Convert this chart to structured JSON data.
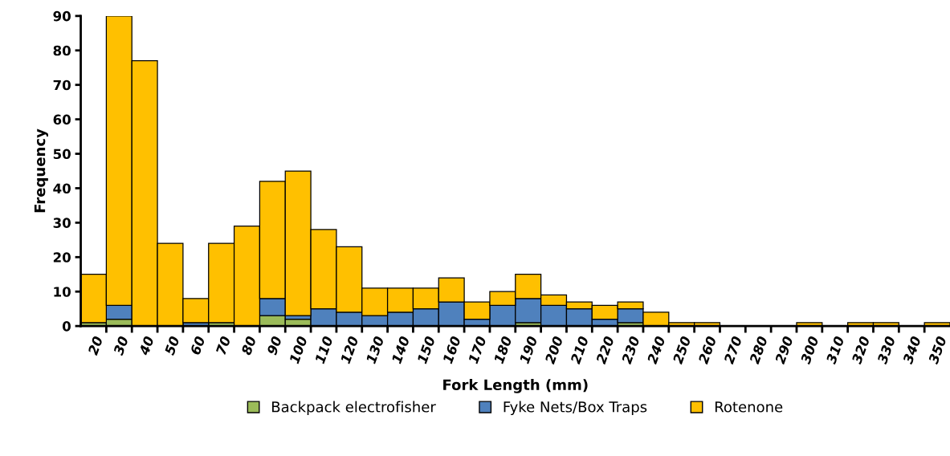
{
  "chart_data": {
    "type": "bar",
    "stacked": true,
    "xlabel": "Fork Length (mm)",
    "ylabel": "Frequency",
    "categories": [
      "20",
      "30",
      "40",
      "50",
      "60",
      "70",
      "80",
      "90",
      "100",
      "110",
      "120",
      "130",
      "140",
      "150",
      "160",
      "170",
      "180",
      "190",
      "200",
      "210",
      "220",
      "230",
      "240",
      "250",
      "260",
      "270",
      "280",
      "290",
      "300",
      "310",
      "320",
      "330",
      "340",
      "350"
    ],
    "series": [
      {
        "name": "Backpack electrofisher",
        "color": "#9bbb59",
        "values": [
          1,
          2,
          0,
          0,
          0,
          1,
          0,
          3,
          2,
          0,
          0,
          0,
          0,
          0,
          0,
          0,
          0,
          1,
          0,
          0,
          0,
          1,
          0,
          0,
          0,
          0,
          0,
          0,
          0,
          0,
          0,
          0,
          0,
          0
        ]
      },
      {
        "name": "Fyke Nets/Box Traps",
        "color": "#4f81bd",
        "values": [
          0,
          4,
          0,
          0,
          1,
          0,
          0,
          5,
          1,
          5,
          4,
          3,
          4,
          5,
          7,
          2,
          6,
          7,
          6,
          5,
          2,
          4,
          0,
          0,
          0,
          0,
          0,
          0,
          0,
          0,
          0,
          0,
          0,
          0
        ]
      },
      {
        "name": "Rotenone",
        "color": "#ffc000",
        "values": [
          14,
          84,
          77,
          24,
          7,
          23,
          29,
          34,
          42,
          23,
          19,
          8,
          7,
          6,
          7,
          5,
          4,
          7,
          3,
          2,
          4,
          2,
          4,
          1,
          1,
          0,
          0,
          0,
          1,
          0,
          1,
          1,
          0,
          1
        ]
      }
    ],
    "ylim": [
      0,
      90
    ],
    "yticks": [
      0,
      10,
      20,
      30,
      40,
      50,
      60,
      70,
      80,
      90
    ],
    "grid": false,
    "legend": "bottom"
  }
}
